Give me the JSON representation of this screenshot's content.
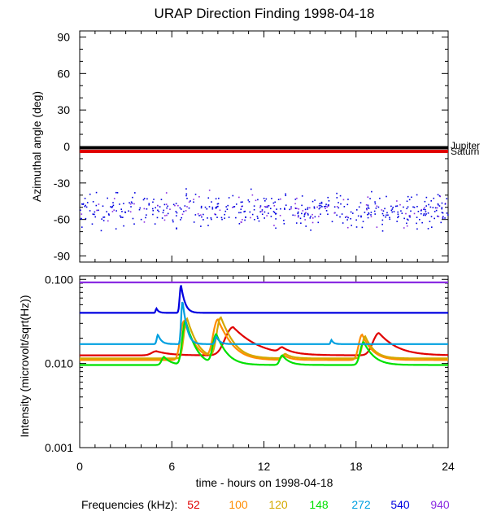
{
  "title": "URAP Direction Finding  1998-04-18",
  "colors": {
    "f52": "#e00000",
    "f100": "#ff8c00",
    "f120": "#d4a800",
    "f148": "#00e000",
    "f272": "#00a0e0",
    "f540": "#0000e0",
    "f940": "#8a2be2",
    "jupiter_line": "#000000",
    "saturn_line": "#e00000"
  },
  "chart_data": [
    {
      "type": "scatter",
      "panel": "azimuth",
      "ylabel": "Azimuthal angle (deg)",
      "ylim": [
        -95,
        95
      ],
      "xlim": [
        0,
        24
      ],
      "yticks": [
        "90",
        "60",
        "30",
        "0",
        "-30",
        "-60",
        "-90"
      ],
      "ytick_values": [
        90,
        60,
        30,
        0,
        -30,
        -60,
        -90
      ],
      "reference_lines": [
        {
          "name": "Jupiter",
          "value": -1,
          "color": "#000000"
        },
        {
          "name": "Saturn",
          "value": -4,
          "color": "#e00000"
        }
      ],
      "scatter": {
        "x_range": [
          0,
          24
        ],
        "y_center": -52,
        "y_spread": 9,
        "colors": [
          "#0000e0",
          "#8a2be2"
        ]
      }
    },
    {
      "type": "line",
      "panel": "intensity",
      "ylabel": "Intensity (microvolt/sqrt(Hz))",
      "yscale": "log",
      "ylim": [
        0.001,
        0.11
      ],
      "xlim": [
        0,
        24
      ],
      "yticks": [
        "0.100",
        "0.010",
        "0.001"
      ],
      "ytick_values": [
        0.1,
        0.01,
        0.001
      ],
      "xticks": [
        "0",
        "6",
        "12",
        "18",
        "24"
      ],
      "xtick_values": [
        0,
        6,
        12,
        18,
        24
      ],
      "xlabel": "time - hours on 1998-04-18",
      "series": [
        {
          "name": "52",
          "color": "#e00000",
          "base": 0.0125,
          "peaks": [
            [
              5.0,
              0.014,
              0.6
            ],
            [
              10.0,
              0.027,
              0.9
            ],
            [
              13.2,
              0.0145,
              0.4
            ],
            [
              19.5,
              0.023,
              0.7
            ]
          ]
        },
        {
          "name": "100",
          "color": "#ff8c00",
          "base": 0.011,
          "peaks": [
            [
              6.8,
              0.032,
              0.4
            ],
            [
              9.0,
              0.033,
              0.5
            ],
            [
              13.3,
              0.0125,
              0.3
            ],
            [
              18.4,
              0.022,
              0.4
            ]
          ]
        },
        {
          "name": "120",
          "color": "#d4a800",
          "base": 0.0115,
          "peaks": [
            [
              7.0,
              0.034,
              0.35
            ],
            [
              9.2,
              0.035,
              0.45
            ],
            [
              13.4,
              0.013,
              0.3
            ],
            [
              18.6,
              0.021,
              0.35
            ]
          ]
        },
        {
          "name": "148",
          "color": "#00e000",
          "base": 0.0096,
          "peaks": [
            [
              5.5,
              0.012,
              0.3
            ],
            [
              6.9,
              0.032,
              0.35
            ],
            [
              8.9,
              0.022,
              0.4
            ],
            [
              13.2,
              0.0125,
              0.3
            ],
            [
              18.5,
              0.018,
              0.4
            ]
          ]
        },
        {
          "name": "272",
          "color": "#00a0e0",
          "base": 0.017,
          "peaks": [
            [
              5.1,
              0.022,
              0.15
            ],
            [
              6.7,
              0.055,
              0.15
            ],
            [
              8.9,
              0.021,
              0.15
            ],
            [
              16.4,
              0.019,
              0.1
            ]
          ]
        },
        {
          "name": "540",
          "color": "#0000e0",
          "base": 0.04,
          "peaks": [
            [
              5.0,
              0.045,
              0.1
            ],
            [
              6.6,
              0.085,
              0.15
            ]
          ]
        },
        {
          "name": "940",
          "color": "#8a2be2",
          "base": 0.092,
          "peaks": []
        }
      ]
    }
  ],
  "legend": {
    "label": "Frequencies (kHz):",
    "items": [
      {
        "text": "52",
        "color": "#e00000"
      },
      {
        "text": "100",
        "color": "#ff8c00"
      },
      {
        "text": "120",
        "color": "#d4a800"
      },
      {
        "text": "148",
        "color": "#00e000"
      },
      {
        "text": "272",
        "color": "#00a0e0"
      },
      {
        "text": "540",
        "color": "#0000e0"
      },
      {
        "text": "940",
        "color": "#8a2be2"
      }
    ]
  },
  "planet_labels": {
    "jupiter": "Jupiter",
    "saturn": "Saturn"
  }
}
